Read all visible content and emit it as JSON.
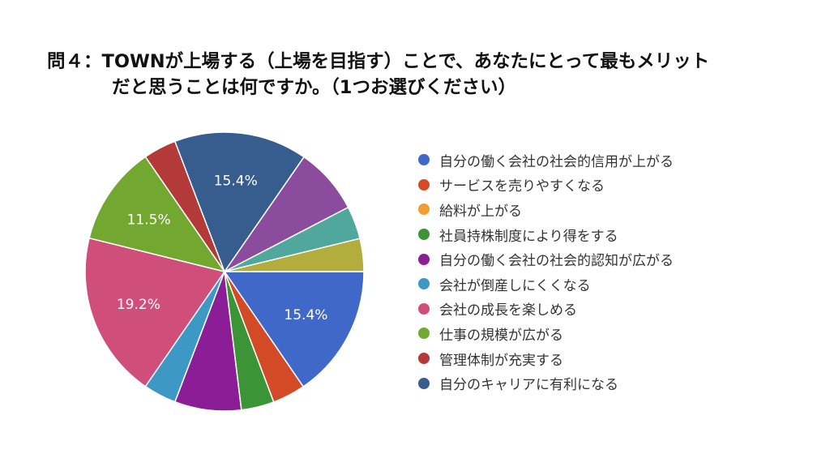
{
  "chart_data": {
    "type": "pie",
    "title_line1": "問４：TOWNが上場する（上場を目指す）ことで、あなたにとって最もメリット",
    "title_line2": "だと思うことは何ですか。（1つお選びください）",
    "legend_position": "right",
    "slices": [
      {
        "label": "自分の働く会社の社会的信用が上がる",
        "value": 15.4,
        "color": "#3f68c9",
        "shown_label": "15.4%"
      },
      {
        "label": "サービスを売りやすくなる",
        "value": 3.8,
        "color": "#d24a26",
        "shown_label": ""
      },
      {
        "label": "給料が上がる",
        "value": 0,
        "color": "#f19c34",
        "shown_label": ""
      },
      {
        "label": "社員持株制度により得をする",
        "value": 3.8,
        "color": "#3b9435",
        "shown_label": ""
      },
      {
        "label": "自分の働く会社の社会的認知が広がる",
        "value": 7.7,
        "color": "#8b1e96",
        "shown_label": ""
      },
      {
        "label": "会社が倒産しにくくなる",
        "value": 3.8,
        "color": "#3d98c6",
        "shown_label": ""
      },
      {
        "label": "会社の成長を楽しめる",
        "value": 19.2,
        "color": "#d04f7a",
        "shown_label": "19.2%"
      },
      {
        "label": "仕事の規模が広がる",
        "value": 11.5,
        "color": "#73a830",
        "shown_label": "11.5%"
      },
      {
        "label": "管理体制が充実する",
        "value": 3.8,
        "color": "#b33a38",
        "shown_label": ""
      },
      {
        "label": "自分のキャリアに有利になる",
        "value": 15.4,
        "color": "#375d8f",
        "shown_label": "15.4%"
      },
      {
        "label": "",
        "value": 7.7,
        "color": "#8c4c9e",
        "shown_label": ""
      },
      {
        "label": "",
        "value": 3.8,
        "color": "#4fa89b",
        "shown_label": ""
      },
      {
        "label": "",
        "value": 3.8,
        "color": "#b2ad3c",
        "shown_label": ""
      }
    ]
  }
}
